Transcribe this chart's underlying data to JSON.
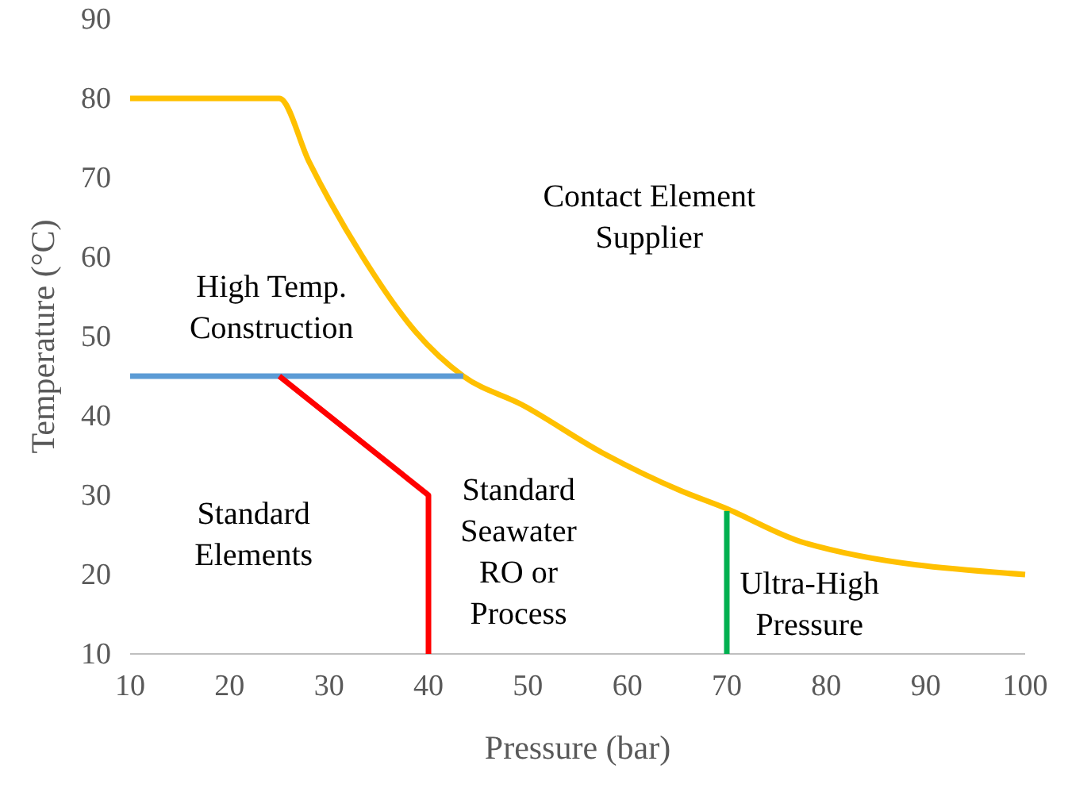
{
  "chart_data": {
    "type": "line",
    "xlabel": "Pressure (bar)",
    "ylabel": "Temperature (°C)",
    "xlim": [
      10,
      100
    ],
    "ylim": [
      10,
      90
    ],
    "xticks": [
      10,
      20,
      30,
      40,
      50,
      60,
      70,
      80,
      90,
      100
    ],
    "yticks": [
      10,
      20,
      30,
      40,
      50,
      60,
      70,
      80,
      90
    ],
    "grid": false,
    "marker": "none",
    "line_style": "solid",
    "series": [
      {
        "color": "#ffc000",
        "x": [
          10,
          25,
          28,
          33.4,
          38.7,
          43.5,
          49.4,
          57.4,
          65.3,
          69.8,
          77.8,
          100
        ],
        "values": [
          80,
          80,
          72,
          60,
          50.6,
          45,
          41.4,
          35.4,
          30.6,
          28.4,
          24,
          20
        ]
      },
      {
        "color": "#5b9bd5",
        "x": [
          10,
          43.5
        ],
        "values": [
          45,
          45
        ]
      },
      {
        "color": "#ff0000",
        "x": [
          25,
          40,
          40
        ],
        "values": [
          45,
          30,
          10
        ]
      },
      {
        "color": "#00b050",
        "x": [
          70,
          70
        ],
        "values": [
          28,
          10
        ]
      }
    ],
    "annotations": [
      "Contact Element\nSupplier",
      "High Temp.\nConstruction",
      "Standard\nElements",
      "Standard\nSeawater\nRO or\nProcess",
      "Ultra-High\nPressure"
    ]
  }
}
